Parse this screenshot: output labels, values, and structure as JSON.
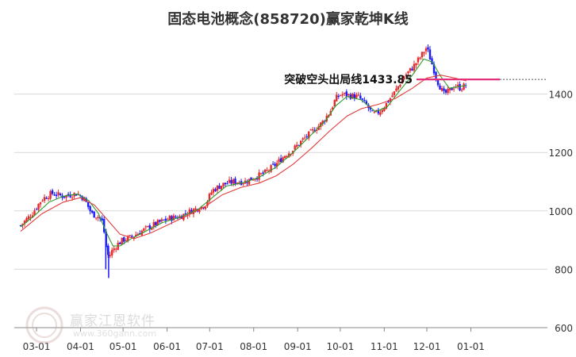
{
  "chart_data": {
    "type": "candlestick",
    "title": "固态电池概念(858720)赢家乾坤K线",
    "xlabel": "",
    "ylabel": "",
    "x_ticks": [
      "03-01",
      "04-01",
      "05-01",
      "06-01",
      "07-01",
      "08-01",
      "09-01",
      "10-01",
      "11-01",
      "12-01",
      "01-01"
    ],
    "y_ticks": [
      600,
      800,
      1000,
      1200,
      1400
    ],
    "ylim": [
      600,
      1600
    ],
    "grid": "horizontal",
    "annotation": {
      "text": "突破空头出局线1433.85",
      "value": 1433.85
    },
    "series": [
      {
        "name": "close",
        "kind": "price",
        "values": [
          [
            0,
            950
          ],
          [
            8,
            990
          ],
          [
            15,
            1040
          ],
          [
            22,
            1060
          ],
          [
            30,
            1050
          ],
          [
            40,
            1060
          ],
          [
            45,
            1040
          ],
          [
            50,
            990
          ],
          [
            55,
            980
          ],
          [
            58,
            960
          ],
          [
            60,
            880
          ],
          [
            62,
            840
          ],
          [
            64,
            860
          ],
          [
            68,
            885
          ],
          [
            72,
            900
          ],
          [
            78,
            910
          ],
          [
            85,
            930
          ],
          [
            95,
            955
          ],
          [
            105,
            975
          ],
          [
            112,
            980
          ],
          [
            120,
            1000
          ],
          [
            130,
            1020
          ],
          [
            135,
            1070
          ],
          [
            142,
            1090
          ],
          [
            150,
            1100
          ],
          [
            158,
            1100
          ],
          [
            165,
            1115
          ],
          [
            172,
            1130
          ],
          [
            180,
            1160
          ],
          [
            186,
            1190
          ],
          [
            192,
            1210
          ],
          [
            198,
            1240
          ],
          [
            205,
            1270
          ],
          [
            212,
            1300
          ],
          [
            218,
            1340
          ],
          [
            222,
            1385
          ],
          [
            226,
            1400
          ],
          [
            232,
            1395
          ],
          [
            238,
            1390
          ],
          [
            244,
            1360
          ],
          [
            248,
            1330
          ],
          [
            253,
            1340
          ],
          [
            258,
            1370
          ],
          [
            264,
            1410
          ],
          [
            270,
            1460
          ],
          [
            276,
            1490
          ],
          [
            282,
            1530
          ],
          [
            286,
            1560
          ],
          [
            290,
            1500
          ],
          [
            294,
            1440
          ],
          [
            298,
            1400
          ],
          [
            302,
            1410
          ],
          [
            306,
            1430
          ],
          [
            310,
            1420
          ],
          [
            314,
            1433
          ]
        ]
      },
      {
        "name": "short-ma",
        "kind": "green-line",
        "values": [
          [
            0,
            945
          ],
          [
            10,
            985
          ],
          [
            20,
            1030
          ],
          [
            30,
            1050
          ],
          [
            40,
            1058
          ],
          [
            48,
            1035
          ],
          [
            55,
            990
          ],
          [
            60,
            930
          ],
          [
            65,
            880
          ],
          [
            70,
            880
          ],
          [
            78,
            905
          ],
          [
            88,
            930
          ],
          [
            100,
            960
          ],
          [
            112,
            978
          ],
          [
            125,
            1005
          ],
          [
            135,
            1045
          ],
          [
            145,
            1085
          ],
          [
            158,
            1098
          ],
          [
            168,
            1115
          ],
          [
            180,
            1150
          ],
          [
            192,
            1200
          ],
          [
            205,
            1262
          ],
          [
            215,
            1310
          ],
          [
            222,
            1360
          ],
          [
            230,
            1392
          ],
          [
            240,
            1380
          ],
          [
            250,
            1340
          ],
          [
            258,
            1355
          ],
          [
            266,
            1405
          ],
          [
            276,
            1465
          ],
          [
            284,
            1520
          ],
          [
            290,
            1510
          ],
          [
            296,
            1460
          ],
          [
            302,
            1420
          ],
          [
            308,
            1425
          ],
          [
            314,
            1430
          ]
        ]
      },
      {
        "name": "long-ma",
        "kind": "red-line",
        "values": [
          [
            0,
            930
          ],
          [
            15,
            990
          ],
          [
            30,
            1030
          ],
          [
            42,
            1045
          ],
          [
            52,
            1020
          ],
          [
            62,
            965
          ],
          [
            70,
            920
          ],
          [
            80,
            905
          ],
          [
            92,
            925
          ],
          [
            105,
            955
          ],
          [
            118,
            985
          ],
          [
            130,
            1015
          ],
          [
            142,
            1055
          ],
          [
            155,
            1080
          ],
          [
            168,
            1095
          ],
          [
            180,
            1120
          ],
          [
            192,
            1160
          ],
          [
            205,
            1215
          ],
          [
            218,
            1275
          ],
          [
            230,
            1325
          ],
          [
            240,
            1350
          ],
          [
            252,
            1365
          ],
          [
            264,
            1385
          ],
          [
            276,
            1420
          ],
          [
            286,
            1455
          ],
          [
            296,
            1465
          ],
          [
            306,
            1455
          ],
          [
            314,
            1445
          ]
        ]
      }
    ]
  },
  "watermark": {
    "text": "赢家江恩软件",
    "url": "www.360gann.com"
  },
  "colors": {
    "up": "#e8282b",
    "down": "#1a1aff",
    "short_ma": "#2e9c2e",
    "long_ma": "#e23b3b",
    "annotation_line": "#e6307a",
    "grid": "#d9d9d9"
  }
}
